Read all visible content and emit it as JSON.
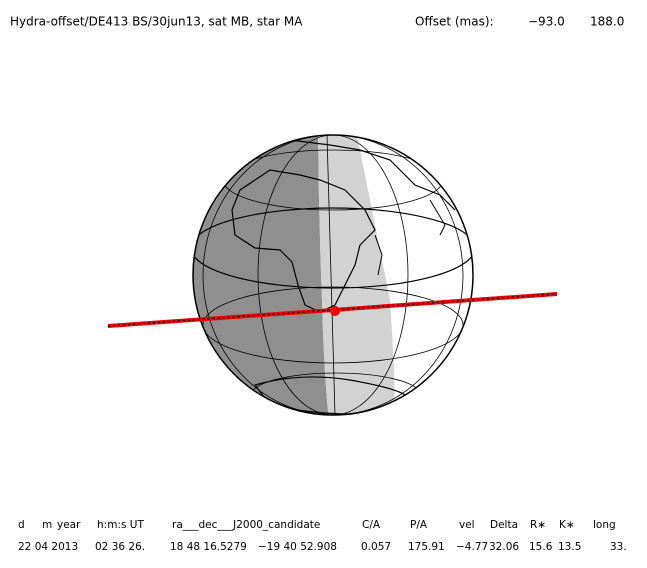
{
  "header": {
    "title": "Hydra-offset/DE413 BS/30jun13, sat MB, star MA",
    "offset_label": "Offset (mas):",
    "offset_values": [
      "−93.0",
      "188.0"
    ]
  },
  "table": {
    "columns": [
      "d",
      "m",
      "year",
      "h:m:s UT",
      "ra___dec___J2000_candidate",
      "C/A",
      "P/A",
      "vel",
      "Delta",
      "R∗",
      "K∗",
      "long"
    ],
    "row": [
      "22 04 2013",
      "02 36 26.",
      "18 48 16.5279",
      "−19 40 52.908",
      "0.057",
      "175.91",
      "−4.77",
      "32.06",
      "15.6",
      "13.5",
      "33."
    ]
  }
}
